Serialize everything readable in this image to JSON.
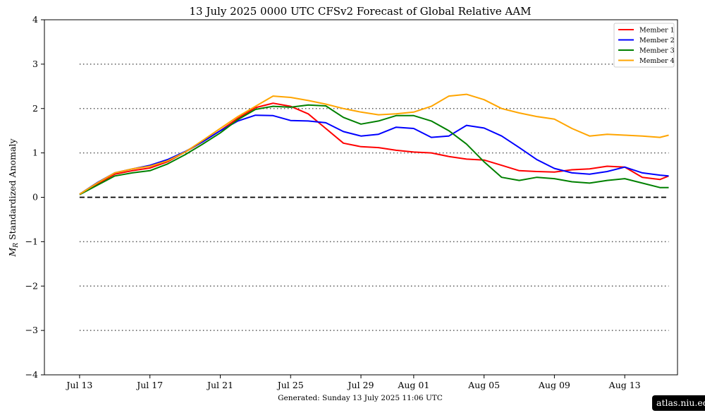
{
  "chart_data": {
    "type": "line",
    "title": "13  July  2025 0000 UTC   CFSv2 Forecast of Global Relative AAM",
    "ylabel": "M_R Standardized Anomaly",
    "footer": "Generated: Sunday  13  July  2025  11:06 UTC",
    "badge": "atlas.niu.edu",
    "x_start": "2025-07-13",
    "xlim": [
      "2025-07-11",
      "2025-08-16"
    ],
    "ylim": [
      -4,
      4
    ],
    "yticks": [
      -4,
      -3,
      -2,
      -1,
      0,
      1,
      2,
      3,
      4
    ],
    "ytick_labels": [
      "−4",
      "−3",
      "−2",
      "−1",
      "0",
      "1",
      "2",
      "3",
      "4"
    ],
    "xticks": [
      {
        "date": "2025-07-13",
        "label": "Jul 13"
      },
      {
        "date": "2025-07-17",
        "label": "Jul 17"
      },
      {
        "date": "2025-07-21",
        "label": "Jul 21"
      },
      {
        "date": "2025-07-25",
        "label": "Jul 25"
      },
      {
        "date": "2025-07-29",
        "label": "Jul 29"
      },
      {
        "date": "2025-08-01",
        "label": "Aug 01"
      },
      {
        "date": "2025-08-05",
        "label": "Aug 05"
      },
      {
        "date": "2025-08-09",
        "label": "Aug 09"
      },
      {
        "date": "2025-08-13",
        "label": "Aug 13"
      }
    ],
    "grid": "dotted horizontal lines at ±1, ±2, ±3",
    "zero_line": "dashed black line at 0",
    "legend_position": "top-right",
    "series": [
      {
        "name": "Member 1",
        "color": "#ff0000",
        "points": [
          [
            "2025-07-13",
            0.07
          ],
          [
            "2025-07-14",
            0.3
          ],
          [
            "2025-07-15",
            0.52
          ],
          [
            "2025-07-16",
            0.6
          ],
          [
            "2025-07-17",
            0.66
          ],
          [
            "2025-07-18",
            0.8
          ],
          [
            "2025-07-19",
            1.02
          ],
          [
            "2025-07-20",
            1.25
          ],
          [
            "2025-07-21",
            1.5
          ],
          [
            "2025-07-22",
            1.78
          ],
          [
            "2025-07-23",
            2.02
          ],
          [
            "2025-07-24",
            2.12
          ],
          [
            "2025-07-25",
            2.05
          ],
          [
            "2025-07-26",
            1.88
          ],
          [
            "2025-07-27",
            1.55
          ],
          [
            "2025-07-28",
            1.22
          ],
          [
            "2025-07-29",
            1.14
          ],
          [
            "2025-07-30",
            1.12
          ],
          [
            "2025-07-31",
            1.06
          ],
          [
            "2025-08-01",
            1.02
          ],
          [
            "2025-08-02",
            1.0
          ],
          [
            "2025-08-03",
            0.92
          ],
          [
            "2025-08-04",
            0.86
          ],
          [
            "2025-08-05",
            0.84
          ],
          [
            "2025-08-06",
            0.72
          ],
          [
            "2025-08-07",
            0.6
          ],
          [
            "2025-08-08",
            0.58
          ],
          [
            "2025-08-09",
            0.57
          ],
          [
            "2025-08-10",
            0.62
          ],
          [
            "2025-08-11",
            0.64
          ],
          [
            "2025-08-12",
            0.7
          ],
          [
            "2025-08-13",
            0.68
          ],
          [
            "2025-08-14",
            0.45
          ],
          [
            "2025-08-15",
            0.4
          ],
          [
            "2025-08-15T12:00",
            0.48
          ]
        ]
      },
      {
        "name": "Member 2",
        "color": "#0000ff",
        "points": [
          [
            "2025-07-13",
            0.07
          ],
          [
            "2025-07-14",
            0.33
          ],
          [
            "2025-07-15",
            0.55
          ],
          [
            "2025-07-16",
            0.64
          ],
          [
            "2025-07-17",
            0.72
          ],
          [
            "2025-07-18",
            0.85
          ],
          [
            "2025-07-19",
            1.03
          ],
          [
            "2025-07-20",
            1.25
          ],
          [
            "2025-07-21",
            1.5
          ],
          [
            "2025-07-22",
            1.72
          ],
          [
            "2025-07-23",
            1.85
          ],
          [
            "2025-07-24",
            1.84
          ],
          [
            "2025-07-25",
            1.73
          ],
          [
            "2025-07-26",
            1.72
          ],
          [
            "2025-07-27",
            1.68
          ],
          [
            "2025-07-28",
            1.48
          ],
          [
            "2025-07-29",
            1.38
          ],
          [
            "2025-07-30",
            1.42
          ],
          [
            "2025-07-31",
            1.58
          ],
          [
            "2025-08-01",
            1.55
          ],
          [
            "2025-08-02",
            1.35
          ],
          [
            "2025-08-03",
            1.38
          ],
          [
            "2025-08-04",
            1.62
          ],
          [
            "2025-08-05",
            1.56
          ],
          [
            "2025-08-06",
            1.38
          ],
          [
            "2025-08-07",
            1.12
          ],
          [
            "2025-08-08",
            0.85
          ],
          [
            "2025-08-09",
            0.65
          ],
          [
            "2025-08-10",
            0.55
          ],
          [
            "2025-08-11",
            0.52
          ],
          [
            "2025-08-12",
            0.58
          ],
          [
            "2025-08-13",
            0.68
          ],
          [
            "2025-08-14",
            0.55
          ],
          [
            "2025-08-15",
            0.5
          ],
          [
            "2025-08-15T12:00",
            0.48
          ]
        ]
      },
      {
        "name": "Member 3",
        "color": "#008000",
        "points": [
          [
            "2025-07-13",
            0.06
          ],
          [
            "2025-07-14",
            0.27
          ],
          [
            "2025-07-15",
            0.48
          ],
          [
            "2025-07-16",
            0.55
          ],
          [
            "2025-07-17",
            0.6
          ],
          [
            "2025-07-18",
            0.75
          ],
          [
            "2025-07-19",
            0.96
          ],
          [
            "2025-07-20",
            1.2
          ],
          [
            "2025-07-21",
            1.45
          ],
          [
            "2025-07-22",
            1.75
          ],
          [
            "2025-07-23",
            1.98
          ],
          [
            "2025-07-24",
            2.05
          ],
          [
            "2025-07-25",
            2.03
          ],
          [
            "2025-07-26",
            2.08
          ],
          [
            "2025-07-27",
            2.06
          ],
          [
            "2025-07-28",
            1.8
          ],
          [
            "2025-07-29",
            1.65
          ],
          [
            "2025-07-30",
            1.72
          ],
          [
            "2025-07-31",
            1.84
          ],
          [
            "2025-08-01",
            1.84
          ],
          [
            "2025-08-02",
            1.72
          ],
          [
            "2025-08-03",
            1.5
          ],
          [
            "2025-08-04",
            1.2
          ],
          [
            "2025-08-05",
            0.8
          ],
          [
            "2025-08-06",
            0.45
          ],
          [
            "2025-08-07",
            0.38
          ],
          [
            "2025-08-08",
            0.45
          ],
          [
            "2025-08-09",
            0.42
          ],
          [
            "2025-08-10",
            0.35
          ],
          [
            "2025-08-11",
            0.32
          ],
          [
            "2025-08-12",
            0.38
          ],
          [
            "2025-08-13",
            0.42
          ],
          [
            "2025-08-14",
            0.32
          ],
          [
            "2025-08-15",
            0.22
          ],
          [
            "2025-08-15T12:00",
            0.22
          ]
        ]
      },
      {
        "name": "Member 4",
        "color": "#ffa500",
        "points": [
          [
            "2025-07-13",
            0.07
          ],
          [
            "2025-07-14",
            0.32
          ],
          [
            "2025-07-15",
            0.55
          ],
          [
            "2025-07-16",
            0.64
          ],
          [
            "2025-07-17",
            0.7
          ],
          [
            "2025-07-18",
            0.82
          ],
          [
            "2025-07-19",
            1.02
          ],
          [
            "2025-07-20",
            1.28
          ],
          [
            "2025-07-21",
            1.55
          ],
          [
            "2025-07-22",
            1.82
          ],
          [
            "2025-07-23",
            2.05
          ],
          [
            "2025-07-24",
            2.28
          ],
          [
            "2025-07-25",
            2.25
          ],
          [
            "2025-07-26",
            2.18
          ],
          [
            "2025-07-27",
            2.1
          ],
          [
            "2025-07-28",
            2.0
          ],
          [
            "2025-07-29",
            1.92
          ],
          [
            "2025-07-30",
            1.86
          ],
          [
            "2025-07-31",
            1.88
          ],
          [
            "2025-08-01",
            1.92
          ],
          [
            "2025-08-02",
            2.05
          ],
          [
            "2025-08-03",
            2.28
          ],
          [
            "2025-08-04",
            2.32
          ],
          [
            "2025-08-05",
            2.2
          ],
          [
            "2025-08-06",
            2.0
          ],
          [
            "2025-08-07",
            1.9
          ],
          [
            "2025-08-08",
            1.82
          ],
          [
            "2025-08-09",
            1.76
          ],
          [
            "2025-08-10",
            1.55
          ],
          [
            "2025-08-11",
            1.38
          ],
          [
            "2025-08-12",
            1.42
          ],
          [
            "2025-08-13",
            1.4
          ],
          [
            "2025-08-14",
            1.38
          ],
          [
            "2025-08-15",
            1.35
          ],
          [
            "2025-08-15T12:00",
            1.4
          ]
        ]
      }
    ]
  }
}
